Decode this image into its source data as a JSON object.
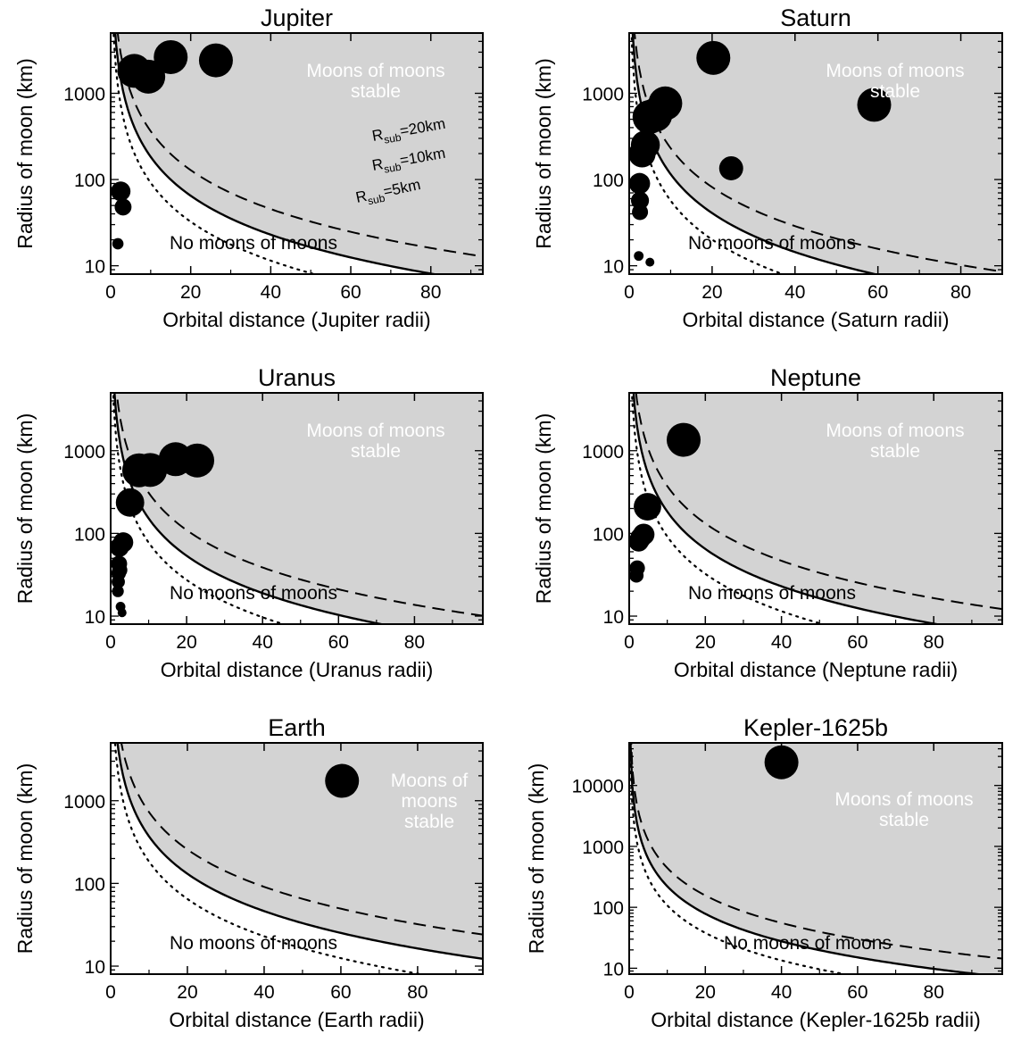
{
  "figure": {
    "colors": {
      "stable_region": "#d3d3d3",
      "stable_text": "#ffffff",
      "ink": "#000000",
      "moon_fill": "#000000"
    },
    "curve_styles": [
      {
        "key": "r20",
        "dash": "dashed"
      },
      {
        "key": "r10",
        "dash": "solid"
      },
      {
        "key": "r5",
        "dash": "dotted"
      }
    ]
  },
  "chart_data": [
    {
      "type": "scatter",
      "title": "Jupiter",
      "xlabel": "Orbital distance (Jupiter radii)",
      "ylabel": "Radius of moon (km)",
      "xlim": [
        0,
        93
      ],
      "ylim_log": [
        8,
        5000
      ],
      "yscale": "log",
      "xticks": [
        0,
        20,
        40,
        60,
        80
      ],
      "yticks": [
        10,
        100,
        1000
      ],
      "grid": false,
      "stable_text": [
        "Moons of moons",
        "stable"
      ],
      "unstable_text": "No moons of moons",
      "curve_constants": {
        "r20": 11500,
        "r10": 5800,
        "r5": 2900
      },
      "curve_labels": [
        {
          "key": "r20",
          "main": "R",
          "sub": "sub",
          "value": "=20km"
        },
        {
          "key": "r10",
          "main": "R",
          "sub": "sub",
          "value": "=10km"
        },
        {
          "key": "r5",
          "main": "R",
          "sub": "sub",
          "value": "=5km"
        }
      ],
      "moons": [
        {
          "x": 1.8,
          "r": 18
        },
        {
          "x": 2.5,
          "r": 73
        },
        {
          "x": 3.1,
          "r": 48
        },
        {
          "x": 5.9,
          "r": 1820
        },
        {
          "x": 9.4,
          "r": 1560
        },
        {
          "x": 15.0,
          "r": 2630
        },
        {
          "x": 26.3,
          "r": 2410
        }
      ]
    },
    {
      "type": "scatter",
      "title": "Saturn",
      "xlabel": "Orbital distance (Saturn radii)",
      "ylabel": "Radius of moon (km)",
      "xlim": [
        0,
        90
      ],
      "ylim_log": [
        8,
        5000
      ],
      "yscale": "log",
      "xticks": [
        0,
        20,
        40,
        60,
        80
      ],
      "yticks": [
        10,
        100,
        1000
      ],
      "grid": false,
      "stable_text": [
        "Moons of moons",
        "stable"
      ],
      "unstable_text": "No moons of moons",
      "curve_constants": {
        "r20": 7300,
        "r10": 3650,
        "r5": 1800
      },
      "moons": [
        {
          "x": 2.3,
          "r": 13
        },
        {
          "x": 2.5,
          "r": 90
        },
        {
          "x": 2.6,
          "r": 57
        },
        {
          "x": 2.6,
          "r": 42
        },
        {
          "x": 3.1,
          "r": 198
        },
        {
          "x": 3.9,
          "r": 252
        },
        {
          "x": 4.9,
          "r": 531
        },
        {
          "x": 6.3,
          "r": 561
        },
        {
          "x": 5.0,
          "r": 11
        },
        {
          "x": 8.7,
          "r": 764
        },
        {
          "x": 20.3,
          "r": 2575
        },
        {
          "x": 24.6,
          "r": 135
        },
        {
          "x": 59.1,
          "r": 735
        }
      ]
    },
    {
      "type": "scatter",
      "title": "Uranus",
      "xlabel": "Orbital distance (Uranus radii)",
      "ylabel": "Radius of moon (km)",
      "xlim": [
        0,
        98
      ],
      "ylim_log": [
        8,
        5000
      ],
      "yscale": "log",
      "xticks": [
        0,
        20,
        40,
        60,
        80
      ],
      "yticks": [
        10,
        100,
        1000
      ],
      "grid": false,
      "stable_text": [
        "Moons of moons",
        "stable"
      ],
      "unstable_text": "No moons of moons",
      "curve_constants": {
        "r20": 9800,
        "r10": 4800,
        "r5": 2450
      },
      "moons": [
        {
          "x": 1.9,
          "r": 20
        },
        {
          "x": 2.0,
          "r": 26
        },
        {
          "x": 2.1,
          "r": 33
        },
        {
          "x": 2.2,
          "r": 43
        },
        {
          "x": 2.3,
          "r": 68
        },
        {
          "x": 2.4,
          "r": 36
        },
        {
          "x": 2.6,
          "r": 13
        },
        {
          "x": 3.0,
          "r": 11
        },
        {
          "x": 3.3,
          "r": 78
        },
        {
          "x": 5.1,
          "r": 236
        },
        {
          "x": 7.5,
          "r": 579
        },
        {
          "x": 10.4,
          "r": 585
        },
        {
          "x": 17.1,
          "r": 789
        },
        {
          "x": 22.8,
          "r": 761
        }
      ]
    },
    {
      "type": "scatter",
      "title": "Neptune",
      "xlabel": "Orbital distance (Neptune radii)",
      "ylabel": "Radius of moon (km)",
      "xlim": [
        0,
        98
      ],
      "ylim_log": [
        8,
        5000
      ],
      "yscale": "log",
      "xticks": [
        0,
        20,
        40,
        60,
        80
      ],
      "yticks": [
        10,
        100,
        1000
      ],
      "grid": false,
      "stable_text": [
        "Moons of moons",
        "stable"
      ],
      "unstable_text": "No moons of moons",
      "curve_constants": {
        "r20": 11800,
        "r10": 5800,
        "r5": 2900
      },
      "moons": [
        {
          "x": 1.9,
          "r": 31
        },
        {
          "x": 2.1,
          "r": 38
        },
        {
          "x": 2.5,
          "r": 80
        },
        {
          "x": 3.0,
          "r": 88
        },
        {
          "x": 3.8,
          "r": 97
        },
        {
          "x": 4.8,
          "r": 210
        },
        {
          "x": 14.3,
          "r": 1353
        }
      ]
    },
    {
      "type": "scatter",
      "title": "Earth",
      "xlabel": "Orbital distance (Earth radii)",
      "ylabel": "Radius of moon (km)",
      "xlim": [
        0,
        97
      ],
      "ylim_log": [
        8,
        5000
      ],
      "yscale": "log",
      "xticks": [
        0,
        20,
        40,
        60,
        80
      ],
      "yticks": [
        10,
        100,
        1000
      ],
      "grid": false,
      "stable_text": [
        "Moons of",
        "moons",
        "stable"
      ],
      "unstable_text": "No moons of moons",
      "curve_constants": {
        "r20": 23000,
        "r10": 11700,
        "r5": 5800
      },
      "moons": [
        {
          "x": 60.3,
          "r": 1737
        }
      ]
    },
    {
      "type": "scatter",
      "title": "Kepler-1625b",
      "xlabel": "Orbital distance (Kepler-1625b radii)",
      "ylabel": "Radius of moon (km)",
      "xlim": [
        0,
        98
      ],
      "ylim_log": [
        8,
        50000
      ],
      "yscale": "log",
      "xticks": [
        0,
        20,
        40,
        60,
        80
      ],
      "yticks": [
        10,
        100,
        1000,
        10000
      ],
      "grid": false,
      "stable_text": [
        "Moons of moons",
        "stable"
      ],
      "unstable_text": "No moons of moons",
      "curve_constants": {
        "r20": 14000,
        "r10": 7000,
        "r5": 3400
      },
      "moons": [
        {
          "x": 40,
          "r": 24000
        }
      ]
    }
  ]
}
